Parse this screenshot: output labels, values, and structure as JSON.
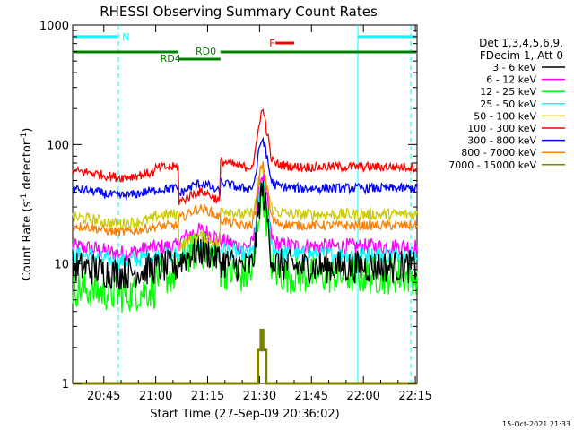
{
  "chart_data": {
    "type": "line",
    "title": "RHESSI Observing Summary Count Rates",
    "xlabel": "Start Time (27-Sep-09 20:36:02)",
    "ylabel": "Count Rate (s",
    "ylabel_sup1": "-1",
    "ylabel_mid": " detector",
    "ylabel_sup2": "-1",
    "ylabel_end": ")",
    "y_scale": "log",
    "ylim": [
      1,
      1000
    ],
    "xlim_minutes": [
      36.0,
      135.5
    ],
    "x_ticks": [
      {
        "label": "20:45",
        "min": 45
      },
      {
        "label": "21:00",
        "min": 60
      },
      {
        "label": "21:15",
        "min": 75
      },
      {
        "label": "21:30",
        "min": 90
      },
      {
        "label": "21:45",
        "min": 105
      },
      {
        "label": "22:00",
        "min": 120
      },
      {
        "label": "22:15",
        "min": 135
      }
    ],
    "y_ticks": [
      {
        "label": "1",
        "value": 1
      },
      {
        "label": "10",
        "value": 10
      },
      {
        "label": "100",
        "value": 100
      },
      {
        "label": "1000",
        "value": 1000
      }
    ],
    "legend_position": "top-right",
    "legend_header": [
      "Det 1,3,4,5,6,9,",
      "FDecim 1, Att 0"
    ],
    "series": [
      {
        "name": "3 - 6 keV",
        "color": "#000000",
        "base": 9.5,
        "dip": 9.5,
        "hump": 13,
        "peak": 40,
        "noise": 0.14
      },
      {
        "name": "6 - 12 keV",
        "color": "#ff00ff",
        "base": 14,
        "dip": 14,
        "hump": 19,
        "peak": 55,
        "noise": 0.07
      },
      {
        "name": "12 - 25 keV",
        "color": "#00ff00",
        "base": 8,
        "dip": 5.5,
        "hump": 13,
        "peak": 38,
        "noise": 0.16
      },
      {
        "name": "25 - 50 keV",
        "color": "#00ffff",
        "base": 12,
        "dip": 12,
        "hump": 14,
        "peak": 45,
        "noise": 0.07
      },
      {
        "name": "50 - 100 keV",
        "color": "#cccc00",
        "base": 26,
        "dip": 24,
        "hump": 17,
        "peak": 62,
        "noise": 0.05
      },
      {
        "name": "100 - 300 keV",
        "color": "#ff0000",
        "base": 65,
        "dip": 58,
        "hump": 40,
        "peak": 190,
        "noise": 0.04
      },
      {
        "name": "300 - 800 keV",
        "color": "#0000ff",
        "base": 43,
        "dip": 42,
        "hump": 47,
        "peak": 110,
        "noise": 0.04
      },
      {
        "name": "800 - 7000 keV",
        "color": "#ff8000",
        "base": 21,
        "dip": 21,
        "hump": 29,
        "peak": 67,
        "noise": 0.04
      },
      {
        "name": "7000 - 15000 keV",
        "color": "#808000",
        "base": 1,
        "dip": 1,
        "hump": 1,
        "peak": 2.8,
        "noise": 0
      }
    ],
    "annotations": {
      "N": {
        "label": "N",
        "color": "#00ffff",
        "value": 800
      },
      "RD0": {
        "label": "RD0",
        "color": "#008000"
      },
      "RD4": {
        "label": "RD4",
        "color": "#008000"
      },
      "F": {
        "label": "F",
        "color": "#ff0000"
      }
    },
    "footer_date": "15-Oct-2021 21:33"
  }
}
